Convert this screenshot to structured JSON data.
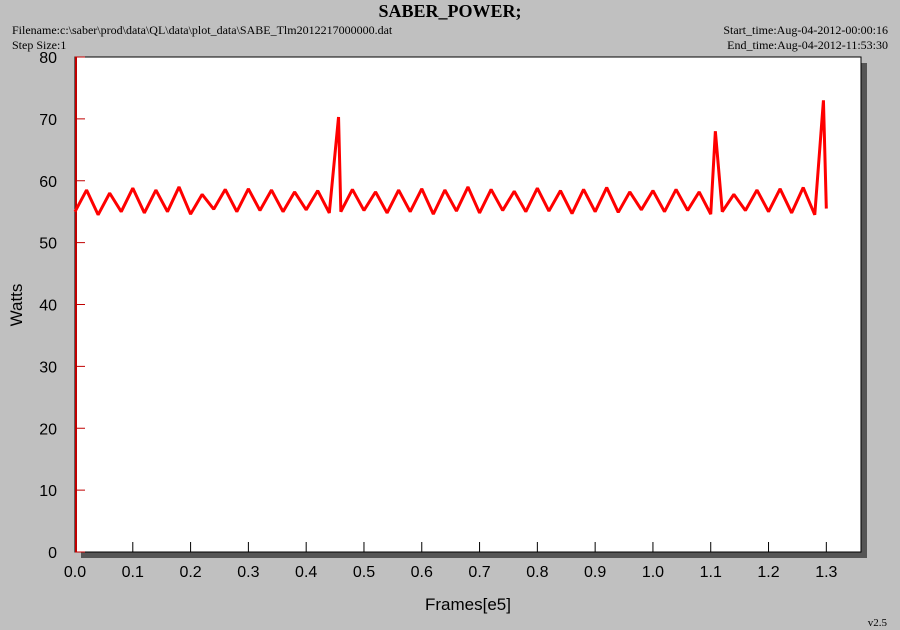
{
  "chart_data": {
    "type": "line",
    "title": "SABER_POWER;",
    "filename": "Filename:c:\\saber\\prod\\data\\QL\\data\\plot_data\\SABE_Tlm2012217000000.dat",
    "step_size": "Step Size:1",
    "start_time": "Start_time:Aug-04-2012-00:00:16",
    "end_time": "End_time:Aug-04-2012-11:53:30",
    "version": "v2.5",
    "xlabel": "Frames[e5]",
    "ylabel": "Watts",
    "xlim": [
      0,
      1.36
    ],
    "ylim": [
      0,
      80
    ],
    "xticks": [
      {
        "value": 0,
        "label": "0.0"
      },
      0.1,
      0.2,
      0.3,
      0.4,
      0.5,
      0.6,
      0.7,
      0.8,
      0.9,
      {
        "value": 1,
        "label": "1.0"
      },
      1.1,
      1.2,
      1.3
    ],
    "yticks": [
      0,
      10,
      20,
      30,
      40,
      50,
      60,
      70,
      80
    ],
    "series": [
      {
        "color": "#ff0000",
        "x": [
          0,
          0.02,
          0.04,
          0.06,
          0.08,
          0.1,
          0.12,
          0.14,
          0.16,
          0.18,
          0.2,
          0.22,
          0.24,
          0.26,
          0.28,
          0.3,
          0.32,
          0.34,
          0.36,
          0.38,
          0.4,
          0.42,
          0.44,
          0.456,
          0.46,
          0.48,
          0.5,
          0.52,
          0.54,
          0.56,
          0.58,
          0.6,
          0.62,
          0.64,
          0.66,
          0.68,
          0.7,
          0.72,
          0.74,
          0.76,
          0.78,
          0.8,
          0.82,
          0.84,
          0.86,
          0.88,
          0.9,
          0.92,
          0.94,
          0.96,
          0.98,
          1.0,
          1.02,
          1.04,
          1.06,
          1.08,
          1.1,
          1.108,
          1.12,
          1.14,
          1.16,
          1.18,
          1.2,
          1.22,
          1.24,
          1.26,
          1.28,
          1.295,
          1.3
        ],
        "values": [
          55,
          58.5,
          54.5,
          58,
          55,
          58.8,
          54.8,
          58.5,
          55,
          59,
          54.6,
          57.8,
          55.4,
          58.6,
          55,
          58.7,
          55.2,
          58.5,
          55,
          58.2,
          55.3,
          58.4,
          54.8,
          70.3,
          55,
          58.6,
          55.2,
          58.2,
          54.8,
          58.5,
          55,
          58.7,
          54.6,
          58.5,
          55.1,
          59,
          54.8,
          58.6,
          55.2,
          58.3,
          55,
          58.8,
          55.1,
          58.4,
          54.7,
          58.6,
          55,
          58.9,
          54.9,
          58.2,
          55.3,
          58.4,
          55,
          58.6,
          55.2,
          58.2,
          54.6,
          68,
          55,
          57.8,
          55.2,
          58.5,
          55,
          58.7,
          54.8,
          58.9,
          54.5,
          73,
          55.5
        ]
      }
    ]
  }
}
